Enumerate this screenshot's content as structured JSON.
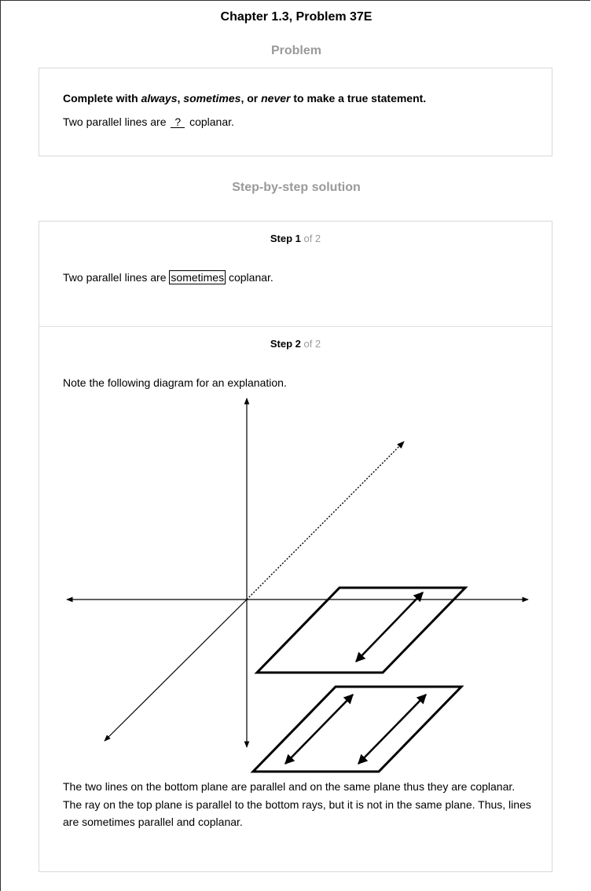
{
  "header": {
    "chapter_title": "Chapter 1.3, Problem 37E"
  },
  "problem": {
    "heading": "Problem",
    "instruction_prefix": "Complete with ",
    "word_always": "always",
    "sep1": ", ",
    "word_sometimes": "sometimes",
    "sep2": ", or ",
    "word_never": "never",
    "instruction_suffix": " to make a true statement.",
    "question_before": "Two parallel lines are ",
    "blank": "?",
    "question_after": " coplanar."
  },
  "solution": {
    "heading": "Step-by-step solution",
    "steps": [
      {
        "step_label": "Step 1",
        "of_total": " of 2",
        "text_before": "Two parallel lines are ",
        "answer": "sometimes",
        "text_after": " coplanar."
      },
      {
        "step_label": "Step 2",
        "of_total": " of 2",
        "intro": "Note the following diagram for an explanation.",
        "explanation": "The two lines on the bottom plane are parallel and on the same plane thus they are coplanar. The ray on the top plane is parallel to the bottom rays, but it is not in the same plane. Thus, lines are sometimes parallel and coplanar."
      }
    ]
  }
}
